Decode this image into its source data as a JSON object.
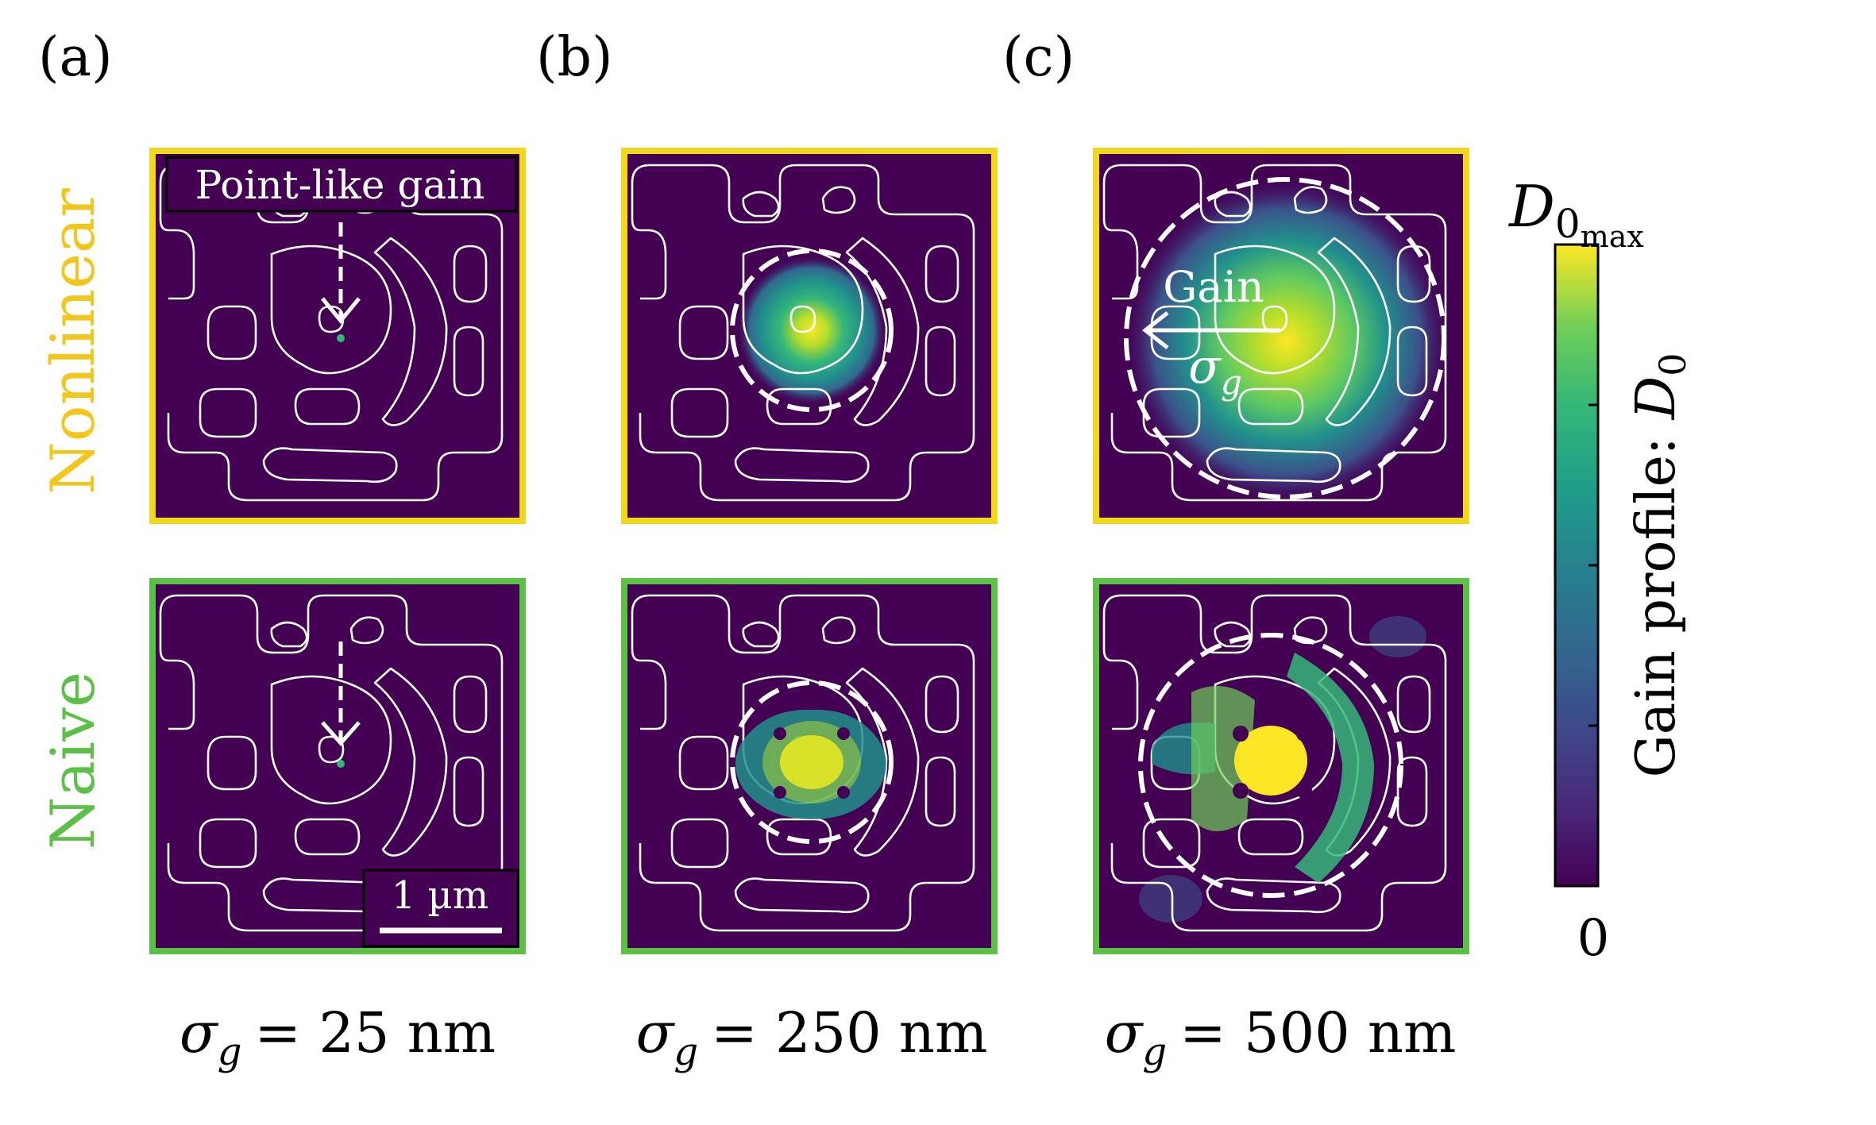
{
  "panel_labels": [
    "(a)",
    "(b)",
    "(c)"
  ],
  "row_labels": {
    "top": "Nonlinear",
    "bottom": "Naive"
  },
  "row_colors": {
    "top": "#f2d71c",
    "bottom": "#5bc045"
  },
  "column_captions": [
    {
      "symbol": "σ",
      "sub": "g",
      "text": "= 25 nm"
    },
    {
      "symbol": "σ",
      "sub": "g",
      "text": "= 250 nm"
    },
    {
      "symbol": "σ",
      "sub": "g",
      "text": "= 500 nm"
    }
  ],
  "annotations": {
    "point_like_gain": "Point-like gain",
    "gain_arrow_label": "Gain",
    "gain_sigma_symbol": "σ",
    "gain_sigma_sub": "g",
    "scale_bar": "1 µm"
  },
  "colorbar": {
    "label": "Gain profile:",
    "label_symbol": "D",
    "label_sub": "0",
    "max_symbol": "D",
    "max_sub": "0",
    "max_subsub": "max",
    "min_label": "0",
    "colormap": "viridis"
  },
  "colors": {
    "background_panel": "#440154",
    "contour": "#ffffff",
    "gain_peak": "#fde725"
  }
}
